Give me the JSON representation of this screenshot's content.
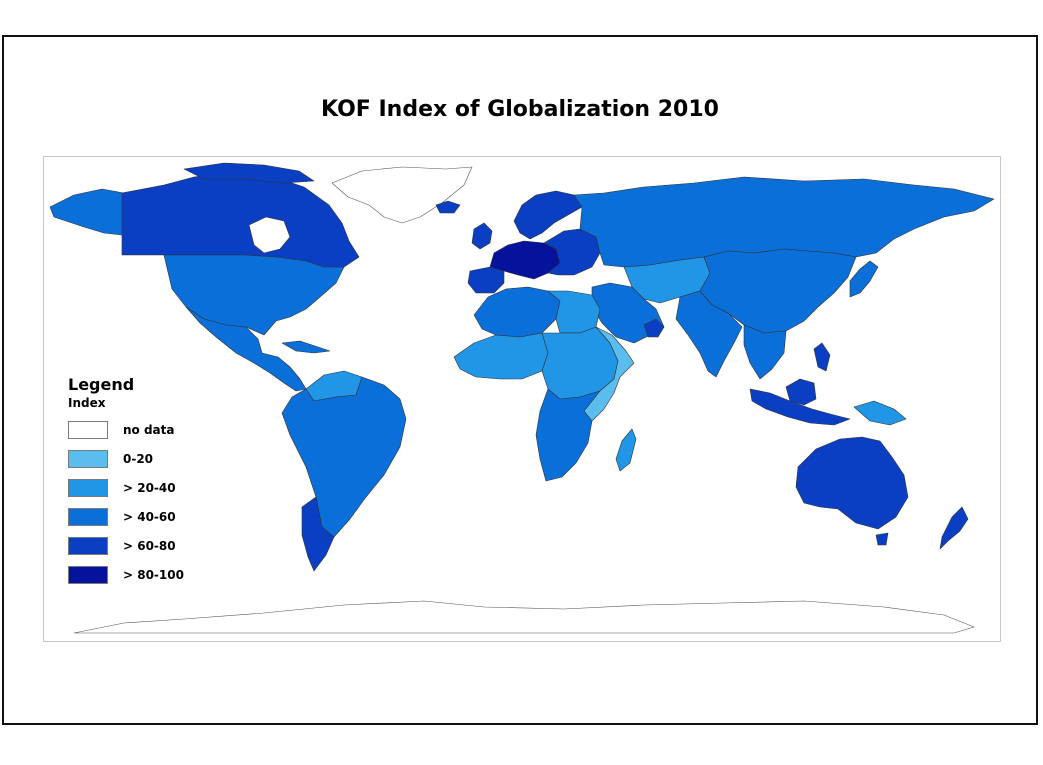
{
  "title": "KOF Index of Globalization 2010",
  "legend": {
    "title": "Legend",
    "subtitle": "Index",
    "items": [
      {
        "label": "no data",
        "color": "#ffffff"
      },
      {
        "label": "0-20",
        "color": "#5bbcee"
      },
      {
        "label": "> 20-40",
        "color": "#2196e6"
      },
      {
        "label": "> 40-60",
        "color": "#0a6fd9"
      },
      {
        "label": "> 60-80",
        "color": "#0a3fc4"
      },
      {
        "label": "> 80-100",
        "color": "#05129c"
      }
    ]
  },
  "regions": [
    {
      "name": "greenland",
      "band": "no data"
    },
    {
      "name": "canada",
      "band": "> 60-80"
    },
    {
      "name": "alaska",
      "band": "> 40-60"
    },
    {
      "name": "united-states",
      "band": "> 40-60"
    },
    {
      "name": "mexico-central-america",
      "band": "> 40-60"
    },
    {
      "name": "cuba",
      "band": "> 40-60"
    },
    {
      "name": "south-america",
      "band": "> 40-60"
    },
    {
      "name": "venezuela",
      "band": "> 20-40"
    },
    {
      "name": "chile-argentina-south",
      "band": "> 60-80"
    },
    {
      "name": "iceland",
      "band": "> 60-80"
    },
    {
      "name": "uk-ireland",
      "band": "> 60-80"
    },
    {
      "name": "scandinavia",
      "band": "> 60-80"
    },
    {
      "name": "western-europe",
      "band": "> 80-100"
    },
    {
      "name": "iberia",
      "band": "> 60-80"
    },
    {
      "name": "eastern-europe",
      "band": "> 60-80"
    },
    {
      "name": "russia",
      "band": "> 40-60"
    },
    {
      "name": "north-africa",
      "band": "> 40-60"
    },
    {
      "name": "egypt-libya",
      "band": "> 20-40"
    },
    {
      "name": "west-africa",
      "band": "> 20-40"
    },
    {
      "name": "central-africa",
      "band": "> 20-40"
    },
    {
      "name": "east-africa",
      "band": "0-20"
    },
    {
      "name": "southern-africa",
      "band": "> 40-60"
    },
    {
      "name": "madagascar",
      "band": "> 20-40"
    },
    {
      "name": "middle-east",
      "band": "> 40-60"
    },
    {
      "name": "arabian-gulf",
      "band": "> 60-80"
    },
    {
      "name": "central-asia",
      "band": "> 20-40"
    },
    {
      "name": "china-mongolia",
      "band": "> 40-60"
    },
    {
      "name": "india",
      "band": "> 40-60"
    },
    {
      "name": "southeast-asia",
      "band": "> 40-60"
    },
    {
      "name": "japan",
      "band": "> 40-60"
    },
    {
      "name": "malaysia-indonesia",
      "band": "> 60-80"
    },
    {
      "name": "papua-new-guinea",
      "band": "> 20-40"
    },
    {
      "name": "australia",
      "band": "> 60-80"
    },
    {
      "name": "new-zealand",
      "band": "> 60-80"
    },
    {
      "name": "antarctica",
      "band": "no data"
    }
  ]
}
